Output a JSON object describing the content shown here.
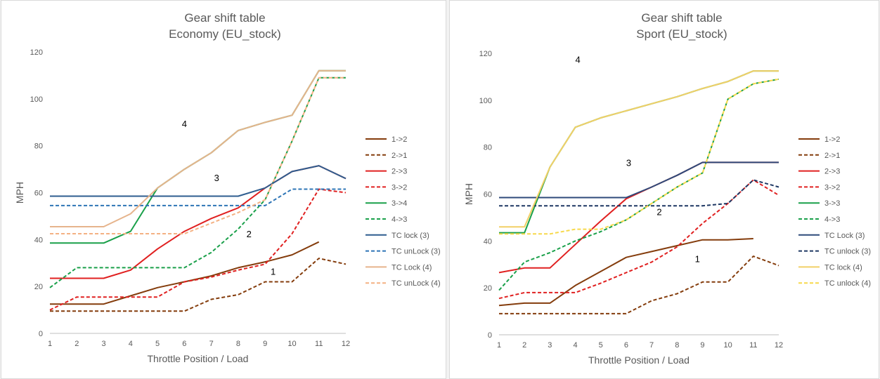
{
  "chart_data": [
    {
      "type": "line",
      "title": "Gear shift table",
      "subtitle": "Economy (EU_stock)",
      "xlabel": "Throttle Position / Load",
      "ylabel": "MPH",
      "x": [
        1,
        2,
        3,
        4,
        5,
        6,
        7,
        8,
        9,
        10,
        11,
        12
      ],
      "xlim": [
        1,
        12
      ],
      "ylim": [
        0,
        120
      ],
      "yticks": [
        0,
        20,
        40,
        60,
        80,
        100,
        120
      ],
      "grid": false,
      "legend_position": "right",
      "zone_labels": [
        {
          "text": "4",
          "x": 6,
          "y": 88
        },
        {
          "text": "3",
          "x": 7.2,
          "y": 65
        },
        {
          "text": "2",
          "x": 8.4,
          "y": 41
        },
        {
          "text": "1",
          "x": 9.3,
          "y": 25
        }
      ],
      "series": [
        {
          "name": "1->2",
          "color": "#843c0c",
          "dash": false,
          "values": [
            12.5,
            12.5,
            12.5,
            16,
            19.5,
            22,
            24.5,
            28,
            30.5,
            33.5,
            39,
            null
          ]
        },
        {
          "name": "2->1",
          "color": "#843c0c",
          "dash": true,
          "values": [
            9.5,
            9.5,
            9.5,
            9.5,
            9.5,
            9.5,
            14.5,
            16.5,
            22,
            22,
            32,
            29.5
          ]
        },
        {
          "name": "2->3",
          "color": "#e02020",
          "dash": false,
          "values": [
            23.5,
            23.5,
            23.5,
            27,
            36,
            43.5,
            49,
            53.5,
            62,
            69,
            71.5,
            66
          ]
        },
        {
          "name": "3->2",
          "color": "#e02020",
          "dash": true,
          "values": [
            10,
            15.5,
            15.5,
            15.5,
            15.5,
            22,
            24,
            27,
            29.5,
            42.5,
            61.5,
            60
          ]
        },
        {
          "name": "3->4",
          "color": "#1aa04a",
          "dash": false,
          "values": [
            38.5,
            38.5,
            38.5,
            43.5,
            62,
            70,
            77,
            86.5,
            90,
            93,
            112,
            112
          ]
        },
        {
          "name": "4->3",
          "color": "#1aa04a",
          "dash": true,
          "values": [
            19.5,
            28,
            28,
            28,
            28,
            28,
            34.5,
            44.5,
            57,
            82,
            109,
            109
          ]
        },
        {
          "name": "TC lock (3)",
          "color": "#2e5d8f",
          "dash": false,
          "values": [
            58.5,
            58.5,
            58.5,
            58.5,
            58.5,
            58.5,
            58.5,
            58.5,
            62,
            69,
            71.5,
            66
          ]
        },
        {
          "name": "TC unLock (3)",
          "color": "#2e75b6",
          "dash": true,
          "values": [
            54.5,
            54.5,
            54.5,
            54.5,
            54.5,
            54.5,
            54.5,
            54.5,
            54.5,
            61.5,
            61.5,
            61.5
          ]
        },
        {
          "name": "TC Lock (4)",
          "color": "#e6b48c",
          "dash": false,
          "values": [
            45.5,
            45.5,
            45.5,
            51,
            62,
            70,
            77,
            86.5,
            90,
            93,
            112,
            112
          ]
        },
        {
          "name": "TC unLock (4)",
          "color": "#f4b183",
          "dash": true,
          "values": [
            42.5,
            42.5,
            42.5,
            42.5,
            42.5,
            42.5,
            47,
            51.5,
            57,
            82,
            109,
            109
          ]
        }
      ]
    },
    {
      "type": "line",
      "title": "Gear shift table",
      "subtitle": "Sport (EU_stock)",
      "xlabel": "Throttle Position / Load",
      "ylabel": "MPH",
      "x": [
        1,
        2,
        3,
        4,
        5,
        6,
        7,
        8,
        9,
        10,
        11,
        12
      ],
      "xlim": [
        1,
        12
      ],
      "ylim": [
        0,
        120
      ],
      "yticks": [
        0,
        20,
        40,
        60,
        80,
        100,
        120
      ],
      "grid": false,
      "legend_position": "right",
      "zone_labels": [
        {
          "text": "4",
          "x": 4.1,
          "y": 116
        },
        {
          "text": "3",
          "x": 6.1,
          "y": 72
        },
        {
          "text": "2",
          "x": 7.3,
          "y": 51
        },
        {
          "text": "1",
          "x": 8.8,
          "y": 31
        }
      ],
      "series": [
        {
          "name": "1->2",
          "color": "#843c0c",
          "dash": false,
          "values": [
            12.5,
            13.5,
            13.5,
            21,
            27,
            33,
            35.5,
            38,
            40.5,
            40.5,
            41,
            null
          ]
        },
        {
          "name": "2->1",
          "color": "#843c0c",
          "dash": true,
          "values": [
            9,
            9,
            9,
            9,
            9,
            9,
            14.5,
            17.5,
            22.5,
            22.5,
            33.5,
            29.5
          ]
        },
        {
          "name": "2->3",
          "color": "#e02020",
          "dash": false,
          "values": [
            26.5,
            28.5,
            28.5,
            38.5,
            48.5,
            58,
            63,
            68,
            73.5,
            73.5,
            73.5,
            73.5
          ]
        },
        {
          "name": "3->2",
          "color": "#e02020",
          "dash": true,
          "values": [
            15.5,
            18,
            18,
            18,
            22,
            26.5,
            31,
            37.5,
            47.5,
            56,
            66,
            59.5
          ]
        },
        {
          "name": "3->3",
          "color": "#1aa04a",
          "dash": false,
          "values": [
            43.5,
            43.5,
            71.5,
            88.5,
            92.5,
            95.5,
            98.5,
            101.5,
            105,
            108,
            112.5,
            112.5
          ]
        },
        {
          "name": "4->3",
          "color": "#1aa04a",
          "dash": true,
          "values": [
            19,
            31,
            35,
            40,
            44,
            49,
            56,
            63,
            69,
            100.5,
            107,
            109
          ]
        },
        {
          "name": "TC Lock (3)",
          "color": "#2e4a7a",
          "dash": false,
          "values": [
            58.5,
            58.5,
            58.5,
            58.5,
            58.5,
            58.5,
            63,
            68,
            73.5,
            73.5,
            73.5,
            73.5
          ]
        },
        {
          "name": "TC unlock (3)",
          "color": "#1f3864",
          "dash": true,
          "values": [
            55,
            55,
            55,
            55,
            55,
            55,
            55,
            55,
            55,
            56,
            66,
            63
          ]
        },
        {
          "name": "TC lock (4)",
          "color": "#f2d067",
          "dash": false,
          "values": [
            46,
            46,
            71.5,
            88.5,
            92.5,
            95.5,
            98.5,
            101.5,
            105,
            108,
            112.5,
            112.5
          ]
        },
        {
          "name": "TC unlock (4)",
          "color": "#f7d94c",
          "dash": true,
          "values": [
            43,
            43,
            43,
            45,
            45,
            49,
            56,
            63,
            69,
            100.5,
            107,
            109
          ]
        }
      ]
    }
  ]
}
